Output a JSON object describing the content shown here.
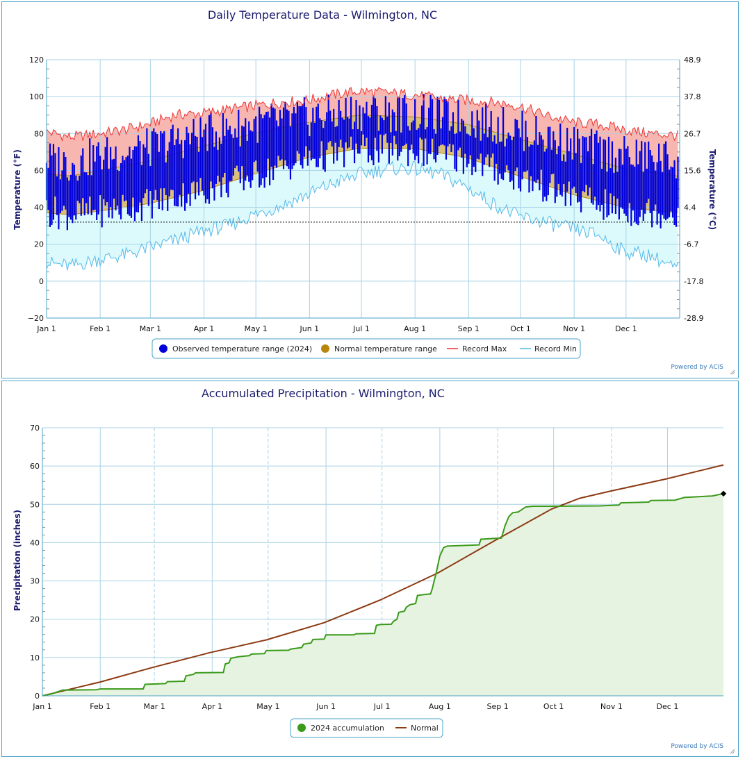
{
  "colors": {
    "observed": "#0000dd",
    "normal": "#b8860b",
    "normal_fill": "#d9bf7a",
    "record_max": "#ee3333",
    "record_max_fill": "#f7b6b0",
    "record_min": "#55b8e8",
    "record_min_fill": "#dcfafc",
    "accum_line": "#3a9a1a",
    "accum_fill": "#e6f3e0",
    "normal_precip": "#8b3a12",
    "grid": "#a8d2e4",
    "border": "#4aa3c8"
  },
  "credit": "Powered by ACIS",
  "chart_data": [
    {
      "type": "line",
      "title": "Daily Temperature Data - Wilmington, NC",
      "ylabel": "Temperature (°F)",
      "ylabel_right": "Temperature (°C)",
      "ylim": [
        -20,
        120
      ],
      "yticks": [
        "120",
        "100",
        "80",
        "60",
        "40",
        "20",
        "0",
        "−20"
      ],
      "yticks_right": [
        "48.9",
        "37.8",
        "26.7",
        "15.6",
        "4.4",
        "-6.7",
        "-17.8",
        "-28.9"
      ],
      "x_ticks": [
        "Jan 1",
        "Feb 1",
        "Mar 1",
        "Apr 1",
        "May 1",
        "Jun 1",
        "Jul 1",
        "Aug 1",
        "Sep 1",
        "Oct 1",
        "Nov 1",
        "Dec 1"
      ],
      "freezing_line": 32,
      "legend": [
        "Observed temperature range (2024)",
        "Normal temperature range",
        "Record Max",
        "Record Min"
      ],
      "normal_high": [
        [
          1,
          58
        ],
        [
          15,
          57
        ],
        [
          32,
          60
        ],
        [
          60,
          65
        ],
        [
          91,
          73
        ],
        [
          121,
          80
        ],
        [
          152,
          86
        ],
        [
          182,
          90
        ],
        [
          213,
          89
        ],
        [
          244,
          85
        ],
        [
          274,
          77
        ],
        [
          305,
          69
        ],
        [
          335,
          61
        ],
        [
          366,
          57
        ]
      ],
      "normal_low": [
        [
          1,
          37
        ],
        [
          15,
          36
        ],
        [
          32,
          38
        ],
        [
          60,
          42
        ],
        [
          91,
          49
        ],
        [
          121,
          58
        ],
        [
          152,
          67
        ],
        [
          182,
          72
        ],
        [
          213,
          72
        ],
        [
          244,
          67
        ],
        [
          274,
          57
        ],
        [
          305,
          47
        ],
        [
          335,
          40
        ],
        [
          366,
          37
        ]
      ],
      "record_max": [
        [
          1,
          81
        ],
        [
          15,
          78
        ],
        [
          32,
          80
        ],
        [
          46,
          82
        ],
        [
          60,
          85
        ],
        [
          75,
          90
        ],
        [
          91,
          91
        ],
        [
          106,
          93
        ],
        [
          121,
          95
        ],
        [
          137,
          97
        ],
        [
          152,
          98
        ],
        [
          167,
          101
        ],
        [
          182,
          103
        ],
        [
          198,
          102
        ],
        [
          213,
          101
        ],
        [
          228,
          99
        ],
        [
          244,
          98
        ],
        [
          259,
          97
        ],
        [
          274,
          95
        ],
        [
          289,
          90
        ],
        [
          305,
          86
        ],
        [
          320,
          85
        ],
        [
          335,
          82
        ],
        [
          350,
          80
        ],
        [
          366,
          79
        ]
      ],
      "record_min": [
        [
          1,
          10
        ],
        [
          15,
          8
        ],
        [
          32,
          12
        ],
        [
          46,
          14
        ],
        [
          60,
          18
        ],
        [
          75,
          22
        ],
        [
          91,
          27
        ],
        [
          106,
          30
        ],
        [
          121,
          36
        ],
        [
          137,
          41
        ],
        [
          152,
          47
        ],
        [
          167,
          53
        ],
        [
          182,
          58
        ],
        [
          198,
          61
        ],
        [
          213,
          61
        ],
        [
          228,
          58
        ],
        [
          244,
          51
        ],
        [
          259,
          42
        ],
        [
          274,
          35
        ],
        [
          289,
          32
        ],
        [
          305,
          28
        ],
        [
          320,
          25
        ],
        [
          335,
          16
        ],
        [
          350,
          14
        ],
        [
          366,
          6
        ]
      ],
      "observed_high_env": [
        [
          1,
          66
        ],
        [
          15,
          64
        ],
        [
          32,
          68
        ],
        [
          60,
          72
        ],
        [
          91,
          80
        ],
        [
          121,
          85
        ],
        [
          152,
          89
        ],
        [
          182,
          92
        ],
        [
          213,
          91
        ],
        [
          244,
          88
        ],
        [
          274,
          82
        ],
        [
          305,
          74
        ],
        [
          335,
          68
        ],
        [
          366,
          66
        ]
      ],
      "observed_low_env": [
        [
          1,
          38
        ],
        [
          15,
          36
        ],
        [
          32,
          38
        ],
        [
          60,
          42
        ],
        [
          91,
          49
        ],
        [
          121,
          57
        ],
        [
          152,
          66
        ],
        [
          182,
          71
        ],
        [
          213,
          71
        ],
        [
          244,
          66
        ],
        [
          274,
          56
        ],
        [
          305,
          46
        ],
        [
          335,
          38
        ],
        [
          366,
          37
        ]
      ]
    },
    {
      "type": "area",
      "title": "Accumulated Precipitation - Wilmington, NC",
      "ylabel": "Precipitation (inches)",
      "ylim": [
        0,
        70
      ],
      "yticks": [
        "70",
        "60",
        "50",
        "40",
        "30",
        "20",
        "10",
        "0"
      ],
      "x_ticks": [
        "Jan 1",
        "Feb 1",
        "Mar 1",
        "Apr 1",
        "May 1",
        "Jun 1",
        "Jul 1",
        "Aug 1",
        "Sep 1",
        "Oct 1",
        "Nov 1",
        "Dec 1"
      ],
      "legend": [
        "2024 accumulation",
        "Normal"
      ],
      "series": [
        {
          "name": "2024 accumulation",
          "points": [
            [
              1,
              0
            ],
            [
              6,
              0.5
            ],
            [
              10,
              1.2
            ],
            [
              12,
              1.5
            ],
            [
              30,
              1.6
            ],
            [
              32,
              1.8
            ],
            [
              55,
              1.8
            ],
            [
              56,
              3.0
            ],
            [
              67,
              3.2
            ],
            [
              68,
              3.7
            ],
            [
              77,
              3.8
            ],
            [
              78,
              5.2
            ],
            [
              82,
              5.6
            ],
            [
              83,
              6.0
            ],
            [
              98,
              6.1
            ],
            [
              99,
              8.3
            ],
            [
              101,
              8.6
            ],
            [
              102,
              9.8
            ],
            [
              106,
              10.2
            ],
            [
              112,
              10.5
            ],
            [
              113,
              10.9
            ],
            [
              120,
              11.0
            ],
            [
              121,
              11.8
            ],
            [
              133,
              11.9
            ],
            [
              134,
              12.2
            ],
            [
              140,
              12.6
            ],
            [
              141,
              13.5
            ],
            [
              145,
              13.8
            ],
            [
              146,
              14.7
            ],
            [
              152,
              14.8
            ],
            [
              153,
              15.9
            ],
            [
              168,
              15.9
            ],
            [
              169,
              16.2
            ],
            [
              179,
              16.3
            ],
            [
              180,
              18.4
            ],
            [
              182,
              18.6
            ],
            [
              188,
              18.7
            ],
            [
              189,
              19.4
            ],
            [
              191,
              20.0
            ],
            [
              192,
              21.8
            ],
            [
              195,
              22.1
            ],
            [
              196,
              23.1
            ],
            [
              198,
              23.8
            ],
            [
              201,
              24.1
            ],
            [
              202,
              26.2
            ],
            [
              205,
              26.4
            ],
            [
              209,
              26.6
            ],
            [
              210,
              28.1
            ],
            [
              212,
              32.0
            ],
            [
              214,
              36.5
            ],
            [
              216,
              38.7
            ],
            [
              218,
              39.1
            ],
            [
              235,
              39.4
            ],
            [
              236,
              40.9
            ],
            [
              247,
              41.2
            ],
            [
              249,
              44.5
            ],
            [
              251,
              46.8
            ],
            [
              253,
              47.8
            ],
            [
              256,
              48.0
            ],
            [
              260,
              49.3
            ],
            [
              264,
              49.5
            ],
            [
              274,
              49.5
            ],
            [
              300,
              49.6
            ],
            [
              305,
              49.7
            ],
            [
              310,
              49.8
            ],
            [
              311,
              50.4
            ],
            [
              320,
              50.5
            ],
            [
              326,
              50.6
            ],
            [
              327,
              51.0
            ],
            [
              340,
              51.1
            ],
            [
              345,
              51.8
            ],
            [
              360,
              52.2
            ],
            [
              366,
              52.8
            ]
          ]
        },
        {
          "name": "Normal",
          "points": [
            [
              1,
              0
            ],
            [
              32,
              3.6
            ],
            [
              60,
              7.4
            ],
            [
              91,
              11.3
            ],
            [
              121,
              14.6
            ],
            [
              152,
              19.1
            ],
            [
              182,
              25.0
            ],
            [
              213,
              32.1
            ],
            [
              244,
              40.7
            ],
            [
              274,
              48.8
            ],
            [
              289,
              51.6
            ],
            [
              305,
              53.4
            ],
            [
              335,
              56.6
            ],
            [
              366,
              60.3
            ]
          ]
        }
      ]
    }
  ]
}
